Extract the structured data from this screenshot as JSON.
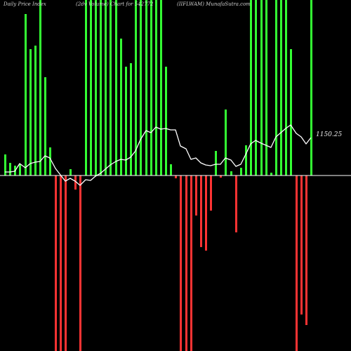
{
  "header": {
    "left": "Daily Price  Index",
    "mid": "(2dv Volume) Chart for 542772",
    "right": "(IIFLWAM) MunafaSutra.com"
  },
  "chart_data": {
    "type": "bar",
    "title": "Daily Price  Index (2dv Volume) Chart for 542772 (IIFLWAM) MunafaSutra.com",
    "last_price_label": "1150.25",
    "colors": {
      "up": "#33ff33",
      "down": "#ff3333",
      "line": "#ffffff",
      "axis": "#ffffff",
      "background": "#000000"
    },
    "bars": [
      {
        "x": 7,
        "v": 30,
        "c": "up"
      },
      {
        "x": 14,
        "v": 18,
        "c": "up"
      },
      {
        "x": 21,
        "v": 14,
        "c": "up"
      },
      {
        "x": 28,
        "v": 16,
        "c": "up"
      },
      {
        "x": 36,
        "v": 230,
        "c": "up"
      },
      {
        "x": 43,
        "v": 180,
        "c": "up"
      },
      {
        "x": 50,
        "v": 185,
        "c": "up"
      },
      {
        "x": 57,
        "v": 250,
        "c": "up"
      },
      {
        "x": 64,
        "v": 140,
        "c": "up"
      },
      {
        "x": 71,
        "v": 40,
        "c": "up"
      },
      {
        "x": 79,
        "v": -250,
        "c": "down"
      },
      {
        "x": 86,
        "v": -250,
        "c": "down"
      },
      {
        "x": 93,
        "v": -250,
        "c": "down"
      },
      {
        "x": 100,
        "v": 9,
        "c": "up"
      },
      {
        "x": 107,
        "v": -20,
        "c": "down"
      },
      {
        "x": 114,
        "v": -250,
        "c": "down"
      },
      {
        "x": 122,
        "v": 250,
        "c": "up"
      },
      {
        "x": 129,
        "v": 250,
        "c": "up"
      },
      {
        "x": 136,
        "v": 250,
        "c": "up"
      },
      {
        "x": 143,
        "v": 250,
        "c": "up"
      },
      {
        "x": 150,
        "v": 250,
        "c": "up"
      },
      {
        "x": 157,
        "v": 250,
        "c": "up"
      },
      {
        "x": 165,
        "v": 250,
        "c": "up"
      },
      {
        "x": 172,
        "v": 195,
        "c": "up"
      },
      {
        "x": 179,
        "v": 155,
        "c": "up"
      },
      {
        "x": 186,
        "v": 160,
        "c": "up"
      },
      {
        "x": 193,
        "v": 250,
        "c": "up"
      },
      {
        "x": 200,
        "v": 250,
        "c": "up"
      },
      {
        "x": 208,
        "v": 250,
        "c": "up"
      },
      {
        "x": 215,
        "v": 250,
        "c": "up"
      },
      {
        "x": 222,
        "v": 250,
        "c": "up"
      },
      {
        "x": 229,
        "v": 250,
        "c": "up"
      },
      {
        "x": 236,
        "v": 155,
        "c": "up"
      },
      {
        "x": 243,
        "v": 16,
        "c": "up"
      },
      {
        "x": 250,
        "v": -4,
        "c": "down"
      },
      {
        "x": 257,
        "v": -250,
        "c": "down"
      },
      {
        "x": 265,
        "v": -250,
        "c": "down"
      },
      {
        "x": 272,
        "v": -250,
        "c": "down"
      },
      {
        "x": 279,
        "v": -57,
        "c": "down"
      },
      {
        "x": 286,
        "v": -102,
        "c": "down"
      },
      {
        "x": 293,
        "v": -107,
        "c": "down"
      },
      {
        "x": 300,
        "v": -50,
        "c": "down"
      },
      {
        "x": 307,
        "v": 35,
        "c": "up"
      },
      {
        "x": 314,
        "v": -3,
        "c": "down"
      },
      {
        "x": 321,
        "v": 94,
        "c": "up"
      },
      {
        "x": 329,
        "v": 6,
        "c": "up"
      },
      {
        "x": 336,
        "v": -81,
        "c": "down"
      },
      {
        "x": 343,
        "v": 11,
        "c": "up"
      },
      {
        "x": 350,
        "v": 43,
        "c": "up"
      },
      {
        "x": 357,
        "v": 250,
        "c": "up"
      },
      {
        "x": 364,
        "v": 250,
        "c": "up"
      },
      {
        "x": 372,
        "v": 250,
        "c": "up"
      },
      {
        "x": 379,
        "v": 250,
        "c": "up"
      },
      {
        "x": 386,
        "v": 4,
        "c": "up"
      },
      {
        "x": 393,
        "v": 250,
        "c": "up"
      },
      {
        "x": 400,
        "v": 250,
        "c": "up"
      },
      {
        "x": 407,
        "v": 250,
        "c": "up"
      },
      {
        "x": 414,
        "v": 180,
        "c": "up"
      },
      {
        "x": 422,
        "v": -250,
        "c": "down"
      },
      {
        "x": 429,
        "v": -198,
        "c": "down"
      },
      {
        "x": 436,
        "v": -213,
        "c": "down"
      },
      {
        "x": 443,
        "v": 250,
        "c": "up"
      }
    ],
    "price_line": [
      [
        7,
        245
      ],
      [
        14,
        245
      ],
      [
        21,
        244
      ],
      [
        28,
        233
      ],
      [
        36,
        239
      ],
      [
        43,
        233
      ],
      [
        50,
        231
      ],
      [
        57,
        230
      ],
      [
        64,
        222
      ],
      [
        71,
        225
      ],
      [
        79,
        240
      ],
      [
        86,
        249
      ],
      [
        93,
        258
      ],
      [
        100,
        254
      ],
      [
        107,
        258
      ],
      [
        114,
        264
      ],
      [
        122,
        256
      ],
      [
        129,
        257
      ],
      [
        136,
        251
      ],
      [
        143,
        247
      ],
      [
        150,
        241
      ],
      [
        157,
        235
      ],
      [
        165,
        230
      ],
      [
        172,
        227
      ],
      [
        179,
        228
      ],
      [
        186,
        224
      ],
      [
        193,
        215
      ],
      [
        200,
        199
      ],
      [
        208,
        186
      ],
      [
        215,
        189
      ],
      [
        222,
        181
      ],
      [
        229,
        184
      ],
      [
        236,
        183
      ],
      [
        243,
        185
      ],
      [
        250,
        185
      ],
      [
        257,
        208
      ],
      [
        265,
        212
      ],
      [
        272,
        227
      ],
      [
        279,
        225
      ],
      [
        286,
        232
      ],
      [
        293,
        235
      ],
      [
        300,
        236
      ],
      [
        307,
        234
      ],
      [
        314,
        234
      ],
      [
        321,
        225
      ],
      [
        329,
        228
      ],
      [
        336,
        237
      ],
      [
        343,
        234
      ],
      [
        350,
        220
      ],
      [
        357,
        205
      ],
      [
        364,
        200
      ],
      [
        372,
        204
      ],
      [
        379,
        207
      ],
      [
        386,
        210
      ],
      [
        393,
        195
      ],
      [
        400,
        189
      ],
      [
        407,
        183
      ],
      [
        414,
        178
      ],
      [
        422,
        190
      ],
      [
        429,
        195
      ],
      [
        436,
        205
      ],
      [
        443,
        196
      ]
    ]
  }
}
